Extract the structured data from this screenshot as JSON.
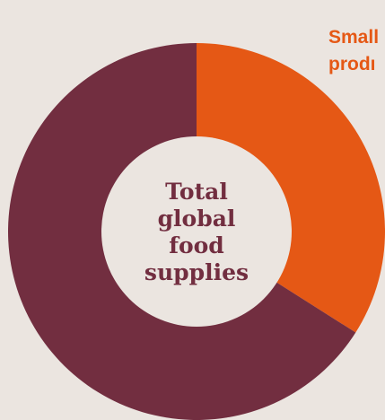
{
  "chart_data": {
    "type": "pie",
    "variant": "donut",
    "center_label": [
      "Total",
      "global",
      "food",
      "supplies"
    ],
    "slices": [
      {
        "label_lines": [
          "Small",
          "prodı"
        ],
        "value": 34,
        "color": "#e55815"
      },
      {
        "label_lines": [],
        "value": 66,
        "color": "#722e40"
      }
    ],
    "hole_color": "#ebe5e0",
    "center_text_color": "#722e40"
  }
}
